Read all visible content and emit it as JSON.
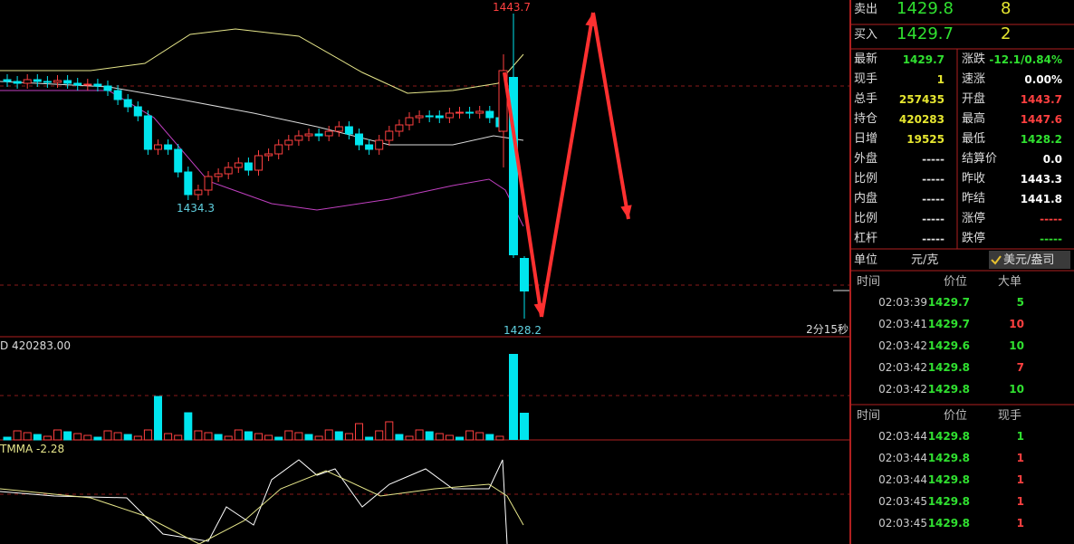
{
  "chart": {
    "high_label": "1443.7",
    "low_label": "1434.3",
    "last_low_label": "1428.2",
    "timer": "2分15秒",
    "volume_label": "D 420283.00",
    "indicator_label": "TMMA -2.28"
  },
  "order_book": [
    {
      "side": "卖出",
      "price": "1429.8",
      "qty": "8"
    },
    {
      "side": "买入",
      "price": "1429.7",
      "qty": "2"
    }
  ],
  "quote": {
    "left": [
      [
        "最新",
        "1429.7"
      ],
      [
        "现手",
        "1"
      ],
      [
        "总手",
        "257435"
      ],
      [
        "持仓",
        "420283"
      ],
      [
        "日增",
        "19525"
      ],
      [
        "外盘",
        "-----"
      ],
      [
        "比例",
        "-----"
      ],
      [
        "内盘",
        "-----"
      ],
      [
        "比例",
        "-----"
      ],
      [
        "杠杆",
        "-----"
      ]
    ],
    "right": [
      [
        "涨跌",
        "-12.1/0.84%"
      ],
      [
        "速涨",
        "0.00%"
      ],
      [
        "开盘",
        "1443.7"
      ],
      [
        "最高",
        "1447.6"
      ],
      [
        "最低",
        "1428.2"
      ],
      [
        "结算价",
        "0.0"
      ],
      [
        "昨收",
        "1443.3"
      ],
      [
        "昨结",
        "1441.8"
      ],
      [
        "涨停",
        "-----"
      ],
      [
        "跌停",
        "-----"
      ]
    ]
  },
  "unit": {
    "label": "单位",
    "option_1": "元/克",
    "option_2": "美元/盎司"
  },
  "big_trades": {
    "header": [
      "时间",
      "价位",
      "大单"
    ],
    "rows": [
      [
        "02:03:39",
        "1429.7",
        "5"
      ],
      [
        "02:03:41",
        "1429.7",
        "10"
      ],
      [
        "02:03:42",
        "1429.6",
        "10"
      ],
      [
        "02:03:42",
        "1429.8",
        "7"
      ],
      [
        "02:03:42",
        "1429.8",
        "10"
      ]
    ]
  },
  "ticks": {
    "header": [
      "时间",
      "价位",
      "现手"
    ],
    "rows": [
      [
        "02:03:44",
        "1429.8",
        "1"
      ],
      [
        "02:03:44",
        "1429.8",
        "1"
      ],
      [
        "02:03:44",
        "1429.8",
        "1"
      ],
      [
        "02:03:45",
        "1429.8",
        "1"
      ],
      [
        "02:03:45",
        "1429.8",
        "1"
      ]
    ]
  }
}
